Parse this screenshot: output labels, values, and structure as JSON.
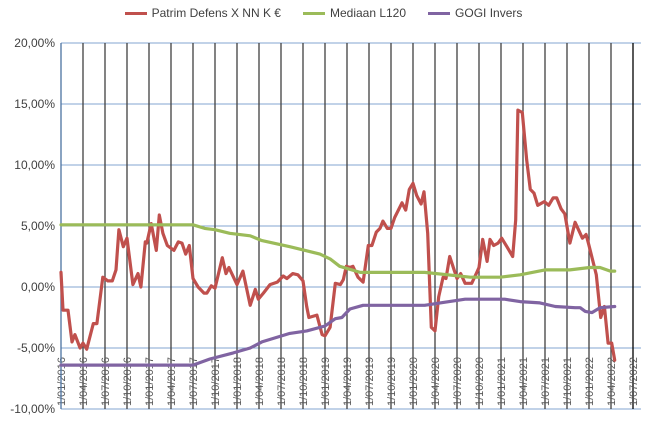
{
  "chart_data": {
    "type": "line",
    "title": "",
    "xlabel": "",
    "ylabel": "",
    "x_unit": "months since 1/01/2016",
    "xlim": [
      0,
      78
    ],
    "ylim": [
      -10,
      20
    ],
    "yticks": [
      20,
      15,
      10,
      5,
      0,
      -5,
      -10
    ],
    "ytick_labels": [
      "20,00%",
      "15,00%",
      "10,00%",
      "5,00%",
      "0,00%",
      "-5,00%",
      "-10,00%"
    ],
    "xtick_labels": [
      "1/01/2016",
      "1/04/2016",
      "1/07/2016",
      "1/10/2016",
      "1/01/2017",
      "1/04/2017",
      "1/07/2017",
      "1/10/2017",
      "1/01/2018",
      "1/04/2018",
      "1/07/2018",
      "1/10/2018",
      "1/01/2019",
      "1/04/2019",
      "1/07/2019",
      "1/10/2019",
      "1/01/2020",
      "1/04/2020",
      "1/07/2020",
      "1/10/2020",
      "1/01/2021",
      "1/04/2021",
      "1/07/2021",
      "1/10/2021",
      "1/01/2022",
      "1/04/2022",
      "1/07/2022"
    ],
    "grid": true,
    "legend_position": "top",
    "series": [
      {
        "name": "Patrim Defens X NN K €",
        "color": "#c0504d",
        "points": [
          [
            0,
            1.2
          ],
          [
            0.27,
            -1.9
          ],
          [
            0.95,
            -1.9
          ],
          [
            1.5,
            -4.5
          ],
          [
            1.9,
            -3.9
          ],
          [
            2.6,
            -5.0
          ],
          [
            3.0,
            -4.6
          ],
          [
            3.5,
            -5.1
          ],
          [
            4.4,
            -3.0
          ],
          [
            4.9,
            -3.0
          ],
          [
            5.7,
            0.8
          ],
          [
            6.4,
            0.5
          ],
          [
            7.0,
            0.5
          ],
          [
            7.5,
            1.4
          ],
          [
            7.9,
            4.7
          ],
          [
            8.5,
            3.3
          ],
          [
            9.0,
            4.0
          ],
          [
            9.8,
            0.2
          ],
          [
            10.5,
            1.1
          ],
          [
            10.9,
            0.0
          ],
          [
            11.5,
            3.7
          ],
          [
            11.7,
            3.6
          ],
          [
            12.3,
            5.2
          ],
          [
            13.0,
            3.0
          ],
          [
            13.4,
            5.9
          ],
          [
            13.9,
            4.4
          ],
          [
            14.5,
            3.4
          ],
          [
            15.4,
            3.0
          ],
          [
            16.0,
            3.7
          ],
          [
            16.5,
            3.6
          ],
          [
            17.0,
            2.7
          ],
          [
            17.5,
            3.4
          ],
          [
            18.0,
            0.7
          ],
          [
            18.7,
            0.0
          ],
          [
            19.5,
            -0.5
          ],
          [
            19.9,
            -0.5
          ],
          [
            20.5,
            0.1
          ],
          [
            21.0,
            -0.1
          ],
          [
            22.0,
            2.4
          ],
          [
            22.5,
            1.1
          ],
          [
            22.9,
            1.6
          ],
          [
            24.0,
            0.2
          ],
          [
            24.8,
            1.3
          ],
          [
            25.8,
            -1.5
          ],
          [
            26.5,
            -0.2
          ],
          [
            26.9,
            -1.0
          ],
          [
            27.6,
            -0.5
          ],
          [
            28.5,
            0.2
          ],
          [
            29.5,
            0.4
          ],
          [
            30.3,
            0.9
          ],
          [
            30.8,
            0.7
          ],
          [
            31.6,
            1.1
          ],
          [
            32.3,
            1.0
          ],
          [
            33.0,
            0.5
          ],
          [
            33.5,
            -1.6
          ],
          [
            33.8,
            -2.5
          ],
          [
            34.9,
            -2.3
          ],
          [
            35.6,
            -3.9
          ],
          [
            36.0,
            -4.0
          ],
          [
            36.7,
            -3.3
          ],
          [
            37.4,
            0.3
          ],
          [
            38.1,
            0.2
          ],
          [
            38.5,
            0.6
          ],
          [
            38.9,
            1.7
          ],
          [
            39.4,
            1.6
          ],
          [
            39.8,
            1.7
          ],
          [
            40.5,
            0.8
          ],
          [
            41.2,
            0.4
          ],
          [
            41.9,
            3.4
          ],
          [
            42.4,
            3.4
          ],
          [
            43.0,
            4.5
          ],
          [
            43.5,
            4.8
          ],
          [
            43.9,
            5.4
          ],
          [
            44.5,
            4.8
          ],
          [
            45.0,
            4.8
          ],
          [
            45.5,
            5.7
          ],
          [
            46.5,
            6.9
          ],
          [
            47.0,
            6.3
          ],
          [
            47.5,
            8.0
          ],
          [
            48.0,
            8.5
          ],
          [
            48.5,
            7.5
          ],
          [
            49.1,
            6.8
          ],
          [
            49.5,
            7.8
          ],
          [
            50.0,
            4.4
          ],
          [
            50.5,
            -3.3
          ],
          [
            51.0,
            -3.6
          ],
          [
            51.5,
            -0.8
          ],
          [
            52.1,
            0.8
          ],
          [
            52.5,
            0.7
          ],
          [
            53.0,
            2.5
          ],
          [
            53.6,
            1.4
          ],
          [
            54.0,
            0.7
          ],
          [
            54.5,
            1.1
          ],
          [
            55.1,
            0.3
          ],
          [
            56.0,
            0.3
          ],
          [
            56.7,
            1.2
          ],
          [
            57.0,
            1.6
          ],
          [
            57.5,
            3.9
          ],
          [
            58.1,
            2.1
          ],
          [
            58.5,
            3.9
          ],
          [
            59.0,
            3.4
          ],
          [
            59.6,
            3.6
          ],
          [
            60.1,
            4.0
          ],
          [
            60.8,
            3.3
          ],
          [
            61.6,
            2.5
          ],
          [
            62.0,
            5.5
          ],
          [
            62.3,
            14.5
          ],
          [
            62.9,
            14.3
          ],
          [
            63.5,
            10.4
          ],
          [
            64.0,
            8.0
          ],
          [
            64.5,
            7.7
          ],
          [
            65.0,
            6.7
          ],
          [
            65.9,
            7.0
          ],
          [
            66.5,
            6.7
          ],
          [
            67.1,
            7.3
          ],
          [
            67.6,
            7.3
          ],
          [
            68.2,
            6.4
          ],
          [
            68.7,
            6.0
          ],
          [
            69.4,
            3.6
          ],
          [
            70.1,
            5.3
          ],
          [
            71.1,
            4.0
          ],
          [
            71.6,
            4.3
          ],
          [
            72.0,
            3.4
          ],
          [
            73.0,
            1.0
          ],
          [
            73.6,
            -2.5
          ],
          [
            74.1,
            -1.6
          ],
          [
            74.6,
            -4.6
          ],
          [
            75.1,
            -4.6
          ],
          [
            75.5,
            -6.0
          ]
        ]
      },
      {
        "name": "Mediaan L120",
        "color": "#9bbb59",
        "points": [
          [
            0,
            5.1
          ],
          [
            18,
            5.1
          ],
          [
            19.6,
            4.8
          ],
          [
            21,
            4.7
          ],
          [
            23,
            4.4
          ],
          [
            25.8,
            4.2
          ],
          [
            27.4,
            3.8
          ],
          [
            31.2,
            3.3
          ],
          [
            33.3,
            3.0
          ],
          [
            35.3,
            2.7
          ],
          [
            36.7,
            2.3
          ],
          [
            38,
            1.7
          ],
          [
            40.8,
            1.2
          ],
          [
            49.6,
            1.2
          ],
          [
            55.8,
            0.8
          ],
          [
            59.9,
            0.8
          ],
          [
            62.6,
            1.0
          ],
          [
            66,
            1.4
          ],
          [
            69.4,
            1.4
          ],
          [
            72.1,
            1.6
          ],
          [
            73.5,
            1.6
          ],
          [
            74.9,
            1.3
          ],
          [
            75.5,
            1.3
          ]
        ]
      },
      {
        "name": "GOGI Invers",
        "color": "#8064a2",
        "points": [
          [
            0,
            -6.4
          ],
          [
            18,
            -6.4
          ],
          [
            20.3,
            -5.9
          ],
          [
            23.5,
            -5.4
          ],
          [
            25.8,
            -5.0
          ],
          [
            27.4,
            -4.5
          ],
          [
            31.2,
            -3.8
          ],
          [
            33.5,
            -3.6
          ],
          [
            36,
            -3.2
          ],
          [
            37.4,
            -2.6
          ],
          [
            38.3,
            -2.5
          ],
          [
            39.4,
            -1.8
          ],
          [
            41.2,
            -1.5
          ],
          [
            49.6,
            -1.5
          ],
          [
            51.7,
            -1.3
          ],
          [
            55.1,
            -1.0
          ],
          [
            60.5,
            -1.0
          ],
          [
            62.6,
            -1.2
          ],
          [
            65.3,
            -1.3
          ],
          [
            67.4,
            -1.6
          ],
          [
            70.1,
            -1.7
          ],
          [
            70.8,
            -1.7
          ],
          [
            71.5,
            -2.0
          ],
          [
            72.4,
            -2.1
          ],
          [
            73.5,
            -1.7
          ],
          [
            75.5,
            -1.6
          ]
        ]
      }
    ]
  }
}
